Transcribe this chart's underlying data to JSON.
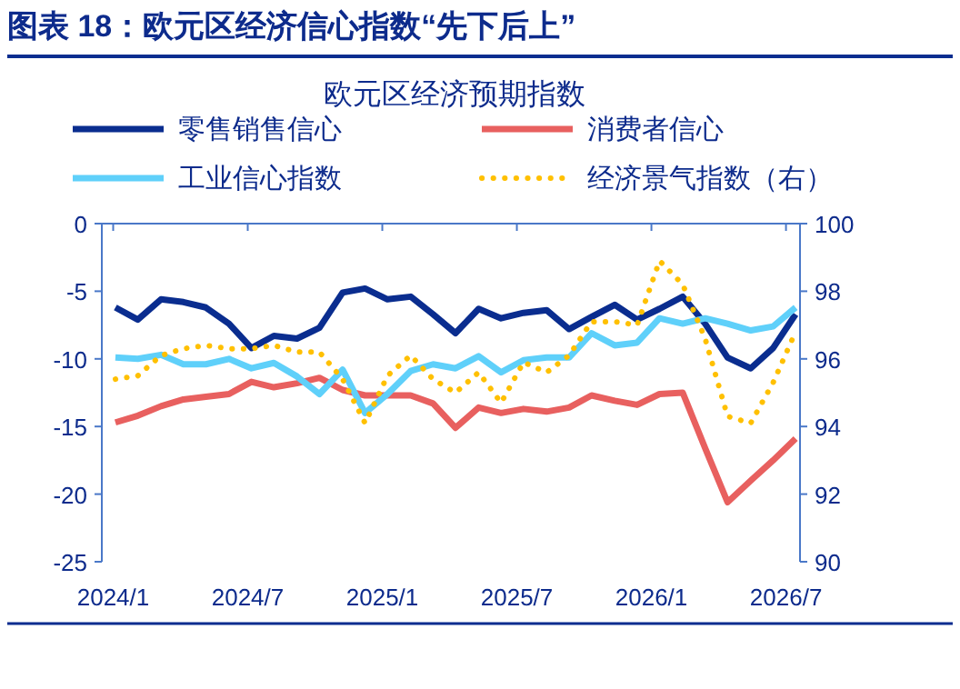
{
  "chart_data": {
    "type": "line",
    "title": "图表 18：欧元区经济信心指数“先下后上”",
    "subtitle": "欧元区经济预期指数",
    "legend": "top",
    "x": [
      "2024-01-04",
      "2024-02-04",
      "2024-03-05",
      "2024-04-05",
      "2024-05-05",
      "2024-06-06",
      "2024-07-06",
      "2024-08-06",
      "2024-09-07",
      "2024-10-07",
      "2024-11-08",
      "2024-12-08",
      "2025-01-08",
      "2025-02-09",
      "2025-03-09",
      "2025-04-09",
      "2025-05-10",
      "2025-06-10",
      "2025-07-10",
      "2025-08-11",
      "2025-09-11",
      "2025-10-11",
      "2025-11-12",
      "2025-12-12",
      "2026-01-12",
      "2026-02-13",
      "2026-03-13",
      "2026-04-13",
      "2026-05-14",
      "2026-06-14",
      "2026-07-14"
    ],
    "xlim": [
      "2023-12-16",
      "2026-07-20"
    ],
    "xticks": [
      {
        "value": "2024-01-01",
        "label": "2024/1"
      },
      {
        "value": "2024-07-01",
        "label": "2024/7"
      },
      {
        "value": "2025-01-01",
        "label": "2025/1"
      },
      {
        "value": "2025-07-01",
        "label": "2025/7"
      },
      {
        "value": "2026-01-01",
        "label": "2026/1"
      },
      {
        "value": "2026-07-01",
        "label": "2026/7"
      }
    ],
    "ylim": [
      -25,
      0
    ],
    "yticks": [
      -25,
      -20,
      -15,
      -10,
      -5,
      0
    ],
    "y2lim": [
      90,
      100
    ],
    "y2ticks": [
      90,
      92,
      94,
      96,
      98,
      100
    ],
    "series": [
      {
        "name": "零售销售信心",
        "color": "#0a2d8f",
        "line_style": "solid",
        "values": [
          -6.2,
          -7.1,
          -5.6,
          -5.8,
          -6.2,
          -7.4,
          -9.2,
          -8.3,
          -8.5,
          -7.7,
          -5.1,
          -4.8,
          -5.6,
          -5.4,
          -6.7,
          -8.1,
          -6.3,
          -7.0,
          -6.6,
          -6.4,
          -7.8,
          -6.9,
          -6.0,
          -7.1,
          -6.3,
          -5.4,
          -7.4,
          -9.9,
          -10.7,
          -9.2,
          -6.7
        ]
      },
      {
        "name": "消费者信心",
        "color": "#e8605f",
        "line_style": "solid",
        "values": [
          -14.7,
          -14.2,
          -13.5,
          -13.0,
          -12.8,
          -12.6,
          -11.7,
          -12.1,
          -11.8,
          -11.4,
          -12.3,
          -12.7,
          -12.7,
          -12.7,
          -13.3,
          -15.1,
          -13.6,
          -14.0,
          -13.7,
          -13.9,
          -13.6,
          -12.7,
          -13.1,
          -13.4,
          -12.6,
          -12.5,
          -16.6,
          -20.6,
          -19.0,
          -17.5,
          -15.9
        ]
      },
      {
        "name": "工业信心指数",
        "color": "#5fd0fa",
        "line_style": "solid",
        "values": [
          -9.9,
          -10.0,
          -9.7,
          -10.4,
          -10.4,
          -10.0,
          -10.7,
          -10.3,
          -11.3,
          -12.6,
          -10.8,
          -14.0,
          -12.6,
          -10.9,
          -10.4,
          -10.7,
          -9.8,
          -11.0,
          -10.1,
          -9.9,
          -9.9,
          -8.1,
          -9.0,
          -8.8,
          -7.0,
          -7.4,
          -7.0,
          -7.4,
          -7.9,
          -7.6,
          -6.2
        ]
      },
      {
        "name": "经济景气指数（右）",
        "color": "#ffc000",
        "line_style": "dotted",
        "axis": "y2",
        "values": [
          95.4,
          95.5,
          96.1,
          96.3,
          96.4,
          96.3,
          96.3,
          96.4,
          96.2,
          96.2,
          95.4,
          94.1,
          95.5,
          96.1,
          95.4,
          95.0,
          95.6,
          94.7,
          95.9,
          95.6,
          96.1,
          97.1,
          97.1,
          97.0,
          98.9,
          98.2,
          96.6,
          94.3,
          94.1,
          95.3,
          96.8
        ]
      }
    ]
  }
}
